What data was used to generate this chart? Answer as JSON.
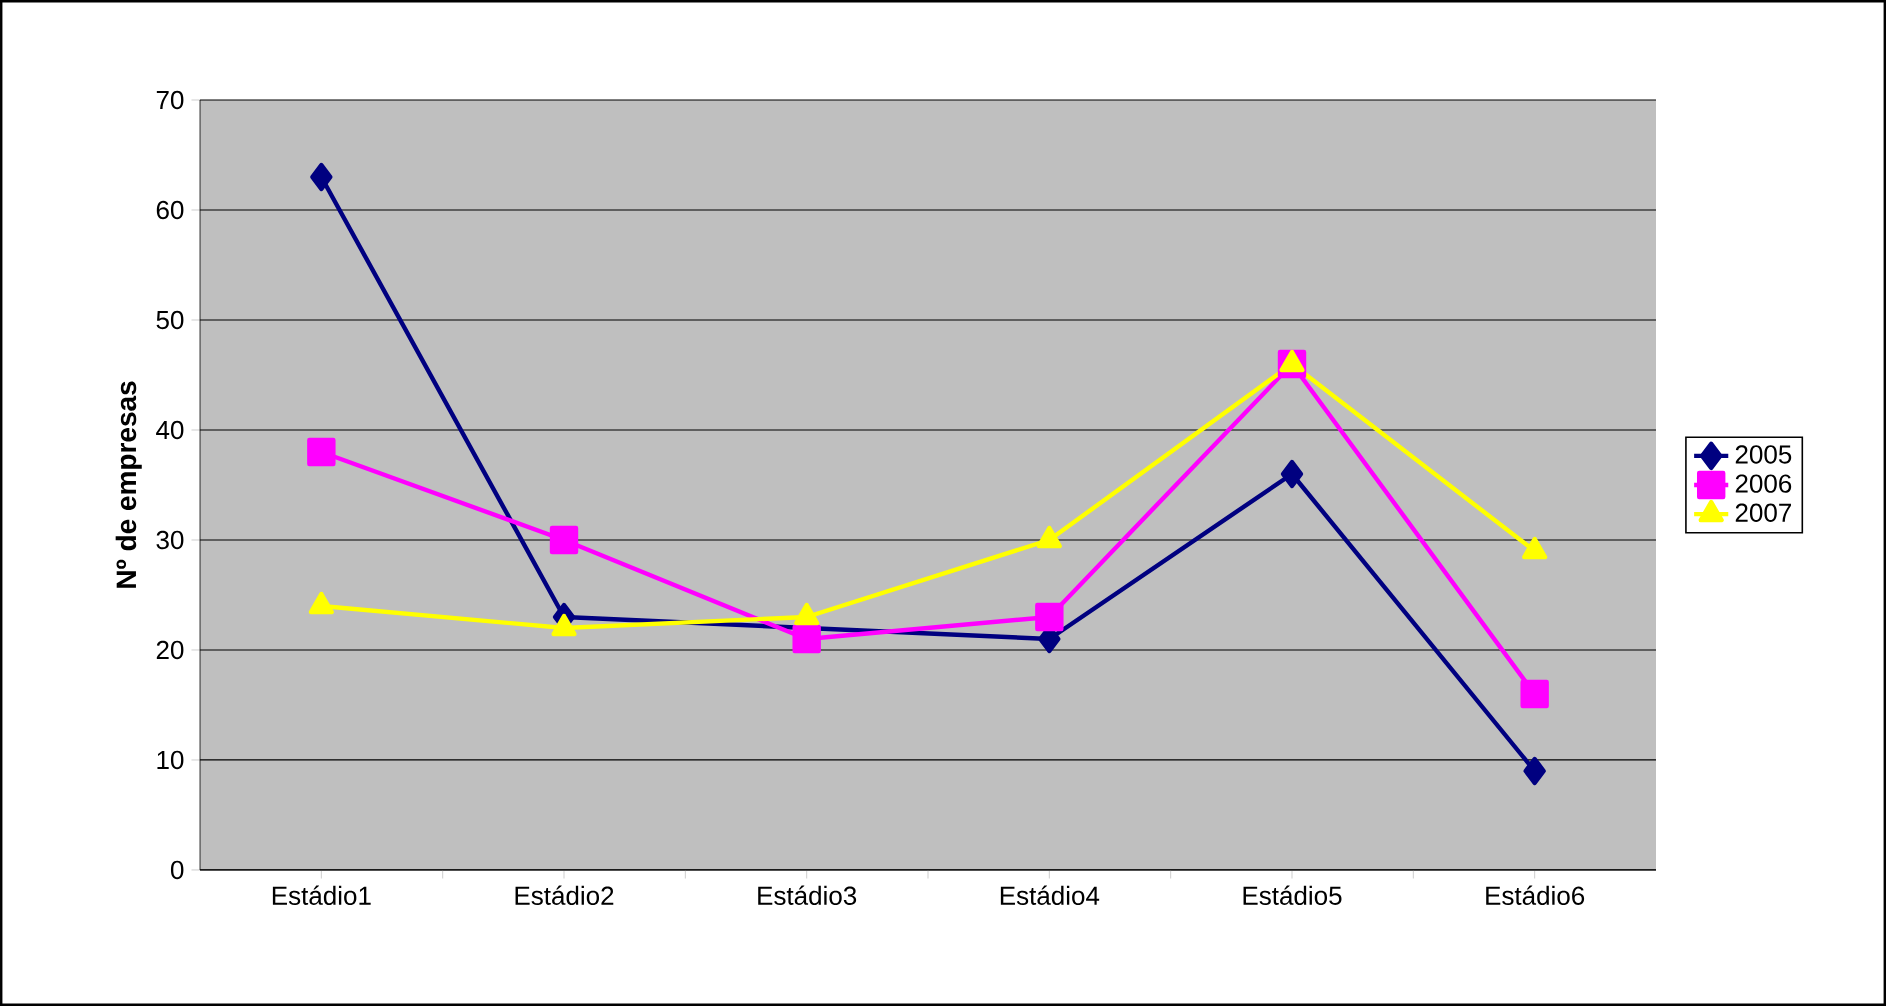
{
  "chart_data": {
    "type": "line",
    "ylabel": "Nº de empresas",
    "categories": [
      "Estádio1",
      "Estádio2",
      "Estádio3",
      "Estádio4",
      "Estádio5",
      "Estádio6"
    ],
    "series": [
      {
        "name": "2005",
        "color": "#000080",
        "marker": "diamond",
        "values": [
          63,
          23,
          22,
          21,
          36,
          9
        ]
      },
      {
        "name": "2006",
        "color": "#ff00ff",
        "marker": "square",
        "values": [
          38,
          30,
          21,
          23,
          46,
          16
        ]
      },
      {
        "name": "2007",
        "color": "#ffff00",
        "marker": "triangle",
        "values": [
          24,
          22,
          23,
          30,
          46,
          29
        ]
      }
    ],
    "ylim": [
      0,
      70
    ],
    "yticks": [
      0,
      10,
      20,
      30,
      40,
      50,
      60,
      70
    ],
    "grid": "y",
    "legend": "right",
    "line_style": "solid"
  }
}
